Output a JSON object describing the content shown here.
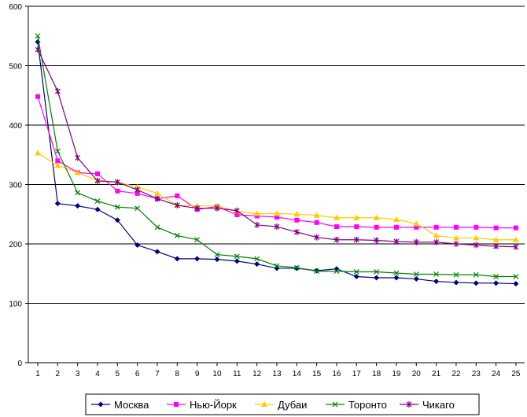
{
  "chart_data": {
    "type": "line",
    "title": "",
    "xlabel": "",
    "ylabel": "",
    "ylim": [
      0,
      600
    ],
    "yticks": [
      0,
      100,
      200,
      300,
      400,
      500,
      600
    ],
    "grid": "horizontal",
    "legend_position": "bottom",
    "x": [
      1,
      2,
      3,
      4,
      5,
      6,
      7,
      8,
      9,
      10,
      11,
      12,
      13,
      14,
      15,
      16,
      17,
      18,
      19,
      20,
      21,
      22,
      23,
      24,
      25
    ],
    "series": [
      {
        "name": "Москва",
        "color": "#000080",
        "marker": "diamond",
        "values": [
          540,
          268,
          264,
          258,
          240,
          198,
          187,
          175,
          175,
          174,
          171,
          166,
          159,
          159,
          155,
          158,
          145,
          143,
          143,
          141,
          137,
          135,
          134,
          134,
          133
        ]
      },
      {
        "name": "Нью-Йорк",
        "color": "#ff00ff",
        "marker": "square",
        "values": [
          448,
          340,
          320,
          318,
          289,
          285,
          276,
          281,
          258,
          263,
          249,
          247,
          245,
          240,
          236,
          229,
          229,
          228,
          228,
          228,
          228,
          228,
          228,
          227,
          227
        ]
      },
      {
        "name": "Дубаи",
        "color": "#ffcc00",
        "marker": "triangle",
        "values": [
          353,
          332,
          320,
          307,
          304,
          296,
          285,
          265,
          264,
          264,
          255,
          251,
          251,
          250,
          248,
          244,
          244,
          244,
          241,
          234,
          214,
          210,
          210,
          207,
          207
        ]
      },
      {
        "name": "Торонто",
        "color": "#008000",
        "marker": "x",
        "values": [
          550,
          356,
          286,
          272,
          262,
          260,
          228,
          214,
          207,
          182,
          179,
          175,
          163,
          160,
          154,
          154,
          153,
          153,
          151,
          149,
          149,
          148,
          148,
          145,
          145
        ]
      },
      {
        "name": "Чикаго",
        "color": "#800080",
        "marker": "star",
        "values": [
          527,
          457,
          345,
          306,
          304,
          291,
          276,
          265,
          260,
          260,
          256,
          232,
          229,
          220,
          211,
          207,
          207,
          206,
          204,
          203,
          203,
          200,
          198,
          196,
          195
        ]
      }
    ]
  }
}
